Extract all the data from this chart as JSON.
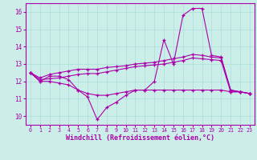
{
  "x_hours": [
    0,
    1,
    2,
    3,
    4,
    5,
    6,
    7,
    8,
    9,
    10,
    11,
    12,
    13,
    14,
    15,
    16,
    17,
    18,
    19,
    20,
    21,
    22,
    23
  ],
  "s1": [
    12.5,
    12.0,
    12.3,
    12.3,
    12.1,
    11.5,
    11.1,
    9.8,
    10.5,
    10.8,
    11.2,
    11.5,
    11.5,
    12.0,
    14.4,
    13.0,
    15.8,
    16.2,
    16.2,
    13.5,
    13.4,
    11.5,
    11.4,
    11.3
  ],
  "s2": [
    12.5,
    12.2,
    12.4,
    12.5,
    12.6,
    12.7,
    12.7,
    12.7,
    12.8,
    12.85,
    12.9,
    13.0,
    13.05,
    13.1,
    13.2,
    13.3,
    13.4,
    13.55,
    13.5,
    13.4,
    13.35,
    11.5,
    11.4,
    11.3
  ],
  "s3": [
    12.5,
    12.1,
    12.15,
    12.2,
    12.3,
    12.4,
    12.45,
    12.45,
    12.55,
    12.65,
    12.75,
    12.85,
    12.9,
    12.95,
    13.0,
    13.1,
    13.2,
    13.35,
    13.3,
    13.25,
    13.2,
    11.4,
    11.4,
    11.3
  ],
  "s4": [
    12.5,
    12.0,
    12.0,
    11.9,
    11.8,
    11.5,
    11.3,
    11.2,
    11.2,
    11.3,
    11.4,
    11.5,
    11.5,
    11.5,
    11.5,
    11.5,
    11.5,
    11.5,
    11.5,
    11.5,
    11.5,
    11.4,
    11.4,
    11.3
  ],
  "ylim": [
    9.5,
    16.5
  ],
  "xlim": [
    -0.5,
    23.5
  ],
  "yticks": [
    10,
    11,
    12,
    13,
    14,
    15,
    16
  ],
  "xticks": [
    0,
    1,
    2,
    3,
    4,
    5,
    6,
    7,
    8,
    9,
    10,
    11,
    12,
    13,
    14,
    15,
    16,
    17,
    18,
    19,
    20,
    21,
    22,
    23
  ],
  "xlabel": "Windchill (Refroidissement éolien,°C)",
  "bg_color": "#cceee8",
  "grid_color": "#aaddda",
  "line_color": "#aa00aa",
  "marker": "+"
}
